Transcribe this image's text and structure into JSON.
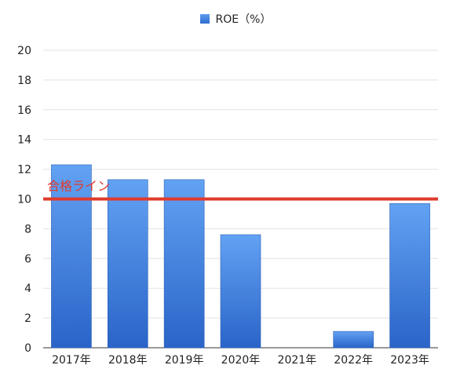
{
  "chart_data": {
    "type": "bar",
    "categories": [
      "2017年",
      "2018年",
      "2019年",
      "2020年",
      "2021年",
      "2022年",
      "2023年"
    ],
    "series": [
      {
        "name": "ROE（%）",
        "values": [
          12.3,
          11.3,
          11.3,
          7.6,
          0,
          1.1,
          9.7
        ]
      }
    ],
    "ylim": [
      0,
      20
    ],
    "yticks": [
      0,
      2,
      4,
      6,
      8,
      10,
      12,
      14,
      16,
      18,
      20
    ],
    "grid": true,
    "legend": "top-center",
    "reference_line": {
      "label": "合格ライン",
      "value": 10,
      "color": "#e03a2e"
    },
    "bar_color": "#3d7fe0"
  }
}
